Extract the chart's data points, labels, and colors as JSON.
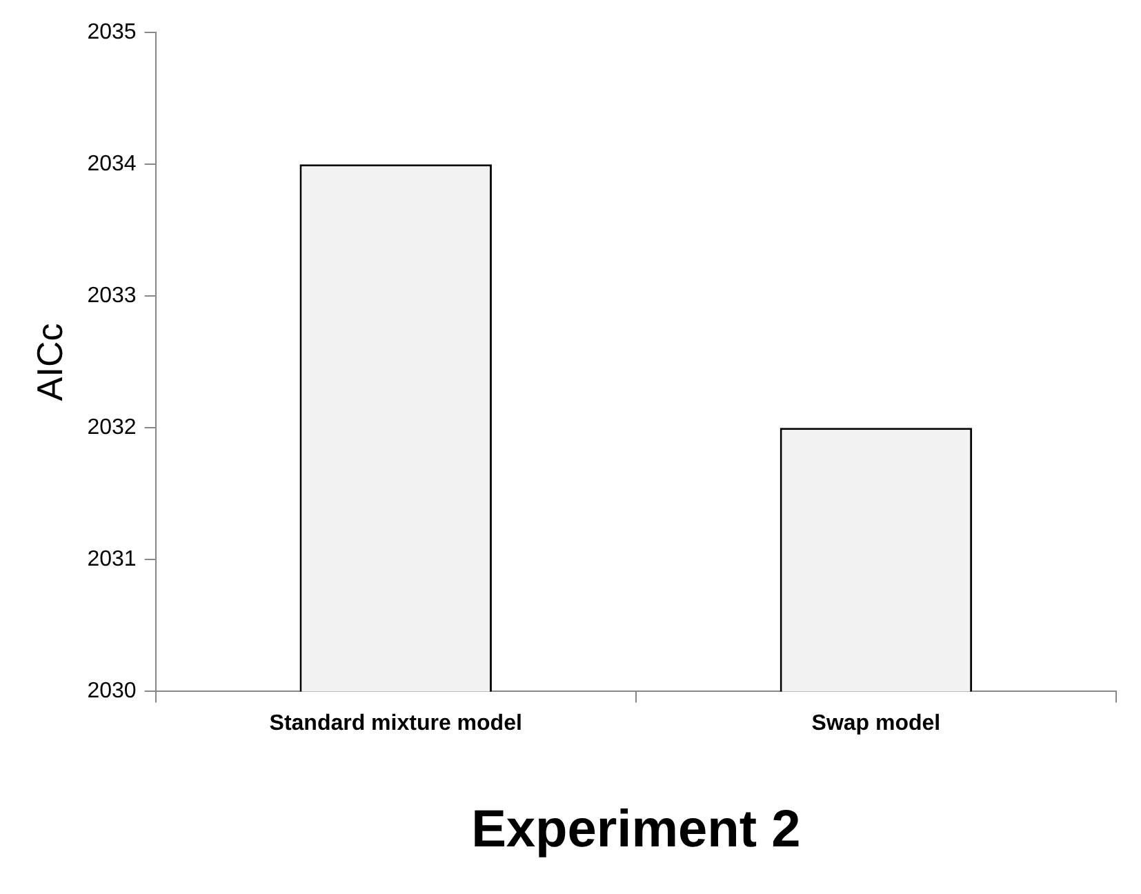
{
  "chart_data": {
    "type": "bar",
    "xlabel": "Experiment 2",
    "ylabel": "AICc",
    "categories": [
      "Standard mixture model",
      "Swap model"
    ],
    "values": [
      2034,
      2032
    ],
    "color": "#f2f2f2",
    "ylim": [
      2030,
      2035
    ],
    "yticks": [
      2030,
      2031,
      2032,
      2033,
      2034,
      2035
    ]
  }
}
